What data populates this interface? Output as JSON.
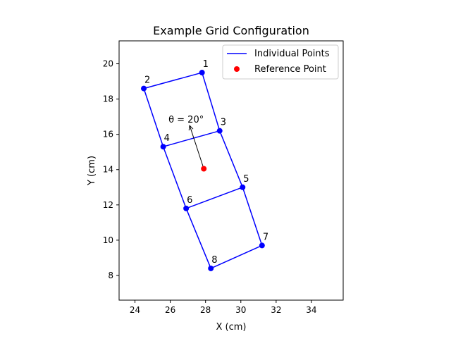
{
  "chart_data": {
    "type": "scatter",
    "title": "Example Grid Configuration",
    "xlabel": "X (cm)",
    "ylabel": "Y (cm)",
    "xlim": [
      23.1,
      35.8
    ],
    "ylim": [
      6.6,
      21.3
    ],
    "xticks": [
      24,
      26,
      28,
      30,
      32,
      34
    ],
    "yticks": [
      8,
      10,
      12,
      14,
      16,
      18,
      20
    ],
    "grid": false,
    "legend_position": "top-right",
    "legend": [
      {
        "label": "Individual Points",
        "marker": "line",
        "color": "#0000ff"
      },
      {
        "label": "Reference Point",
        "marker": "dot",
        "color": "#ff0000"
      }
    ],
    "points": [
      {
        "label": "1",
        "x": 27.8,
        "y": 19.5
      },
      {
        "label": "2",
        "x": 24.5,
        "y": 18.6
      },
      {
        "label": "3",
        "x": 28.8,
        "y": 16.2
      },
      {
        "label": "4",
        "x": 25.6,
        "y": 15.3
      },
      {
        "label": "5",
        "x": 30.1,
        "y": 13.0
      },
      {
        "label": "6",
        "x": 26.9,
        "y": 11.8
      },
      {
        "label": "7",
        "x": 31.2,
        "y": 9.7
      },
      {
        "label": "8",
        "x": 28.3,
        "y": 8.4
      }
    ],
    "edges": [
      [
        1,
        2
      ],
      [
        1,
        3
      ],
      [
        2,
        4
      ],
      [
        3,
        4
      ],
      [
        3,
        5
      ],
      [
        4,
        6
      ],
      [
        5,
        6
      ],
      [
        5,
        7
      ],
      [
        6,
        8
      ],
      [
        7,
        8
      ]
    ],
    "reference_point": {
      "x": 27.9,
      "y": 14.05
    },
    "arrow": {
      "from": [
        27.9,
        14.05
      ],
      "to": [
        27.1,
        16.5
      ]
    },
    "annotation": {
      "text": "θ = 20°",
      "x": 26.9,
      "y": 16.5
    },
    "colors": {
      "series": "#0000ff",
      "reference": "#ff0000",
      "label": "#0000ff"
    }
  }
}
